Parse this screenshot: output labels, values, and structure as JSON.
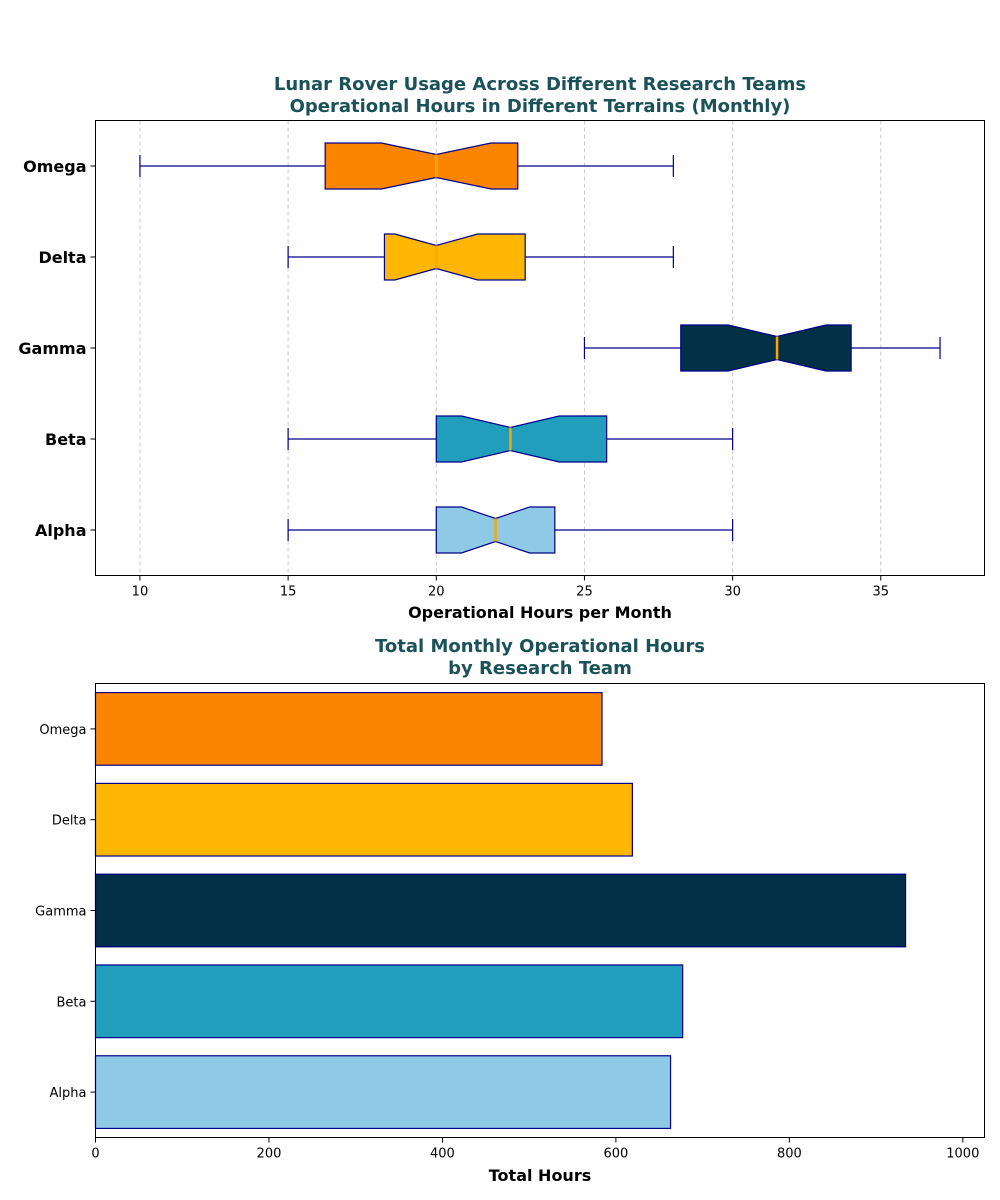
{
  "chart_data": [
    {
      "type": "boxplot",
      "orientation": "horizontal",
      "notched": true,
      "title": "Lunar Rover Usage Across Different Research Teams",
      "subtitle": "Operational Hours in Different Terrains (Monthly)",
      "xlabel": "Operational Hours per Month",
      "ylabel": "",
      "xlim": [
        8.5,
        38.5
      ],
      "xticks": [
        10,
        15,
        20,
        25,
        30,
        35
      ],
      "grid": "x-dashed",
      "median_color": "#ffa500",
      "whisker_color": "#00008b",
      "categories": [
        "Alpha",
        "Beta",
        "Gamma",
        "Delta",
        "Omega"
      ],
      "boxes": [
        {
          "name": "Alpha",
          "min": 15,
          "q1": 20,
          "median": 22,
          "q3": 24,
          "max": 30,
          "notch_low": 20.85,
          "notch_high": 23.15,
          "color": "#8ecae6"
        },
        {
          "name": "Beta",
          "min": 15,
          "q1": 20,
          "median": 22.5,
          "q3": 25.75,
          "max": 30,
          "notch_low": 20.85,
          "notch_high": 24.15,
          "color": "#219ebc"
        },
        {
          "name": "Gamma",
          "min": 25,
          "q1": 28.25,
          "median": 31.5,
          "q3": 34,
          "max": 37,
          "notch_low": 29.85,
          "notch_high": 33.15,
          "color": "#023047"
        },
        {
          "name": "Delta",
          "min": 15,
          "q1": 18.25,
          "median": 20,
          "q3": 23,
          "max": 28,
          "notch_low": 18.6,
          "notch_high": 21.4,
          "color": "#ffb703"
        },
        {
          "name": "Omega",
          "min": 10,
          "q1": 16.25,
          "median": 20,
          "q3": 22.75,
          "max": 28,
          "notch_low": 18.15,
          "notch_high": 21.85,
          "color": "#fb8500"
        }
      ]
    },
    {
      "type": "bar",
      "orientation": "horizontal",
      "title": "Total Monthly Operational Hours",
      "subtitle": "by Research Team",
      "xlabel": "Total Hours",
      "ylabel": "",
      "xlim": [
        0,
        1025
      ],
      "xticks": [
        0,
        200,
        400,
        600,
        800,
        1000
      ],
      "grid": "none",
      "edge_color": "#00008b",
      "categories": [
        "Alpha",
        "Beta",
        "Gamma",
        "Delta",
        "Omega"
      ],
      "values": [
        663,
        677,
        934,
        619,
        584
      ],
      "colors": [
        "#8ecae6",
        "#219ebc",
        "#023047",
        "#ffb703",
        "#fb8500"
      ]
    }
  ]
}
